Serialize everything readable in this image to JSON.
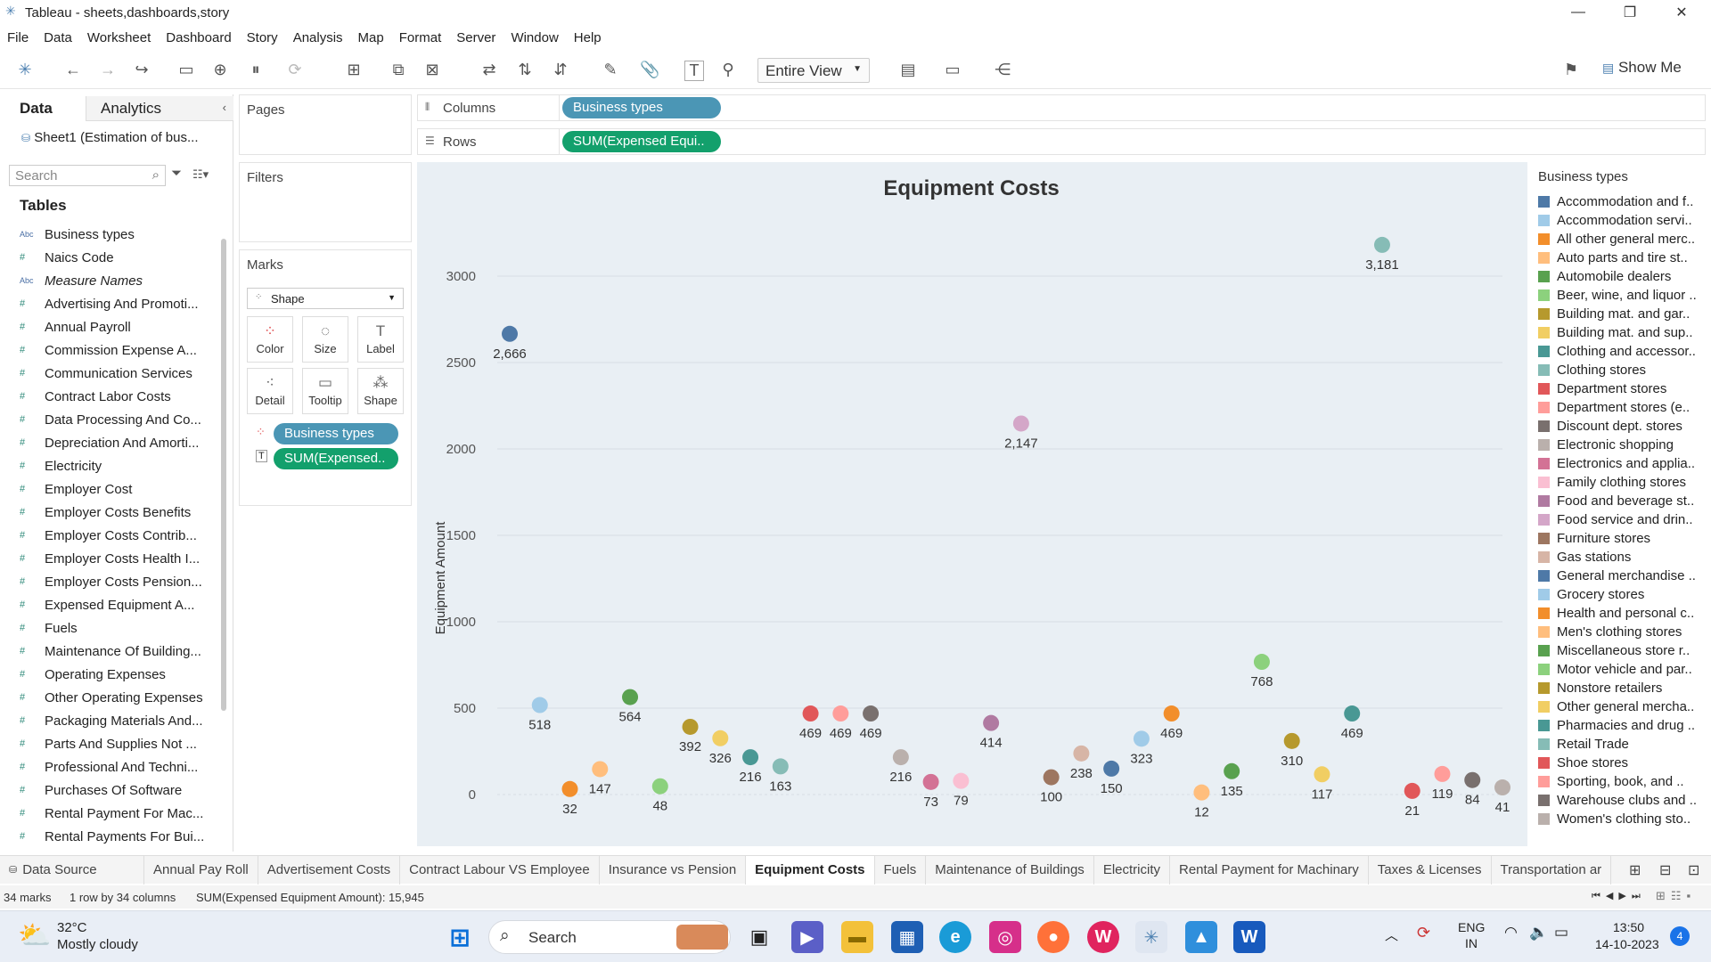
{
  "window": {
    "title": "Tableau - sheets,dashboards,story",
    "controls": [
      "—",
      "❐",
      "✕"
    ]
  },
  "menu": [
    "File",
    "Data",
    "Worksheet",
    "Dashboard",
    "Story",
    "Analysis",
    "Map",
    "Format",
    "Server",
    "Window",
    "Help"
  ],
  "toolbar": {
    "view_select": "Entire View",
    "show_me": "Show Me"
  },
  "datapane": {
    "tab_data": "Data",
    "tab_analytics": "Analytics",
    "datasource": "Sheet1 (Estimation of bus...",
    "search_placeholder": "Search",
    "tables_header": "Tables",
    "fields": [
      {
        "type": "Abc",
        "name": "Business types"
      },
      {
        "type": "#",
        "name": "Naics Code"
      },
      {
        "type": "Abc",
        "name": "Measure Names"
      },
      {
        "type": "#",
        "name": "Advertising And Promoti..."
      },
      {
        "type": "#",
        "name": "Annual Payroll"
      },
      {
        "type": "#",
        "name": "Commission Expense A..."
      },
      {
        "type": "#",
        "name": "Communication Services"
      },
      {
        "type": "#",
        "name": "Contract Labor Costs"
      },
      {
        "type": "#",
        "name": "Data Processing And Co..."
      },
      {
        "type": "#",
        "name": "Depreciation And Amorti..."
      },
      {
        "type": "#",
        "name": "Electricity"
      },
      {
        "type": "#",
        "name": "Employer Cost"
      },
      {
        "type": "#",
        "name": "Employer Costs Benefits"
      },
      {
        "type": "#",
        "name": "Employer Costs Contrib..."
      },
      {
        "type": "#",
        "name": "Employer Costs Health I..."
      },
      {
        "type": "#",
        "name": "Employer Costs Pension..."
      },
      {
        "type": "#",
        "name": "Expensed Equipment A..."
      },
      {
        "type": "#",
        "name": "Fuels"
      },
      {
        "type": "#",
        "name": "Maintenance Of Building..."
      },
      {
        "type": "#",
        "name": "Operating Expenses"
      },
      {
        "type": "#",
        "name": "Other Operating Expenses"
      },
      {
        "type": "#",
        "name": "Packaging Materials And..."
      },
      {
        "type": "#",
        "name": "Parts And Supplies Not ..."
      },
      {
        "type": "#",
        "name": "Professional And Techni..."
      },
      {
        "type": "#",
        "name": "Purchases Of Software"
      },
      {
        "type": "#",
        "name": "Rental Payment For Mac..."
      },
      {
        "type": "#",
        "name": "Rental Payments For Bui..."
      }
    ]
  },
  "cards": {
    "pages": "Pages",
    "filters": "Filters",
    "marks": "Marks",
    "mark_type": "Shape",
    "mark_buttons": [
      "Color",
      "Size",
      "Label",
      "Detail",
      "Tooltip",
      "Shape"
    ],
    "mark_pills": [
      "Business types",
      "SUM(Expensed.."
    ]
  },
  "shelves": {
    "columns_label": "Columns",
    "columns_pill": "Business types",
    "rows_label": "Rows",
    "rows_pill": "SUM(Expensed Equi.."
  },
  "chart_data": {
    "type": "scatter",
    "title": "Equipment Costs",
    "ylabel": "Equipment Amount",
    "xlabel": "",
    "ylim": [
      0,
      3300
    ],
    "yticks": [
      0,
      500,
      1000,
      1500,
      2000,
      2500,
      3000
    ],
    "grid": true,
    "legend_title": "Business types",
    "legend_position": "right",
    "categories": [
      "Accommodation and f..",
      "Accommodation servi..",
      "All other general merc..",
      "Auto parts and tire st..",
      "Automobile dealers",
      "Beer, wine, and liquor ..",
      "Building mat. and gar..",
      "Building mat. and sup..",
      "Clothing and accessor..",
      "Clothing stores",
      "Department stores",
      "Department stores (e..",
      "Discount dept. stores",
      "Electronic shopping",
      "Electronics and applia..",
      "Family clothing stores",
      "Food and beverage st..",
      "Food service and drin..",
      "Furniture stores",
      "Gas stations",
      "General merchandise ..",
      "Grocery stores",
      "Health and personal c..",
      "Men's clothing stores",
      "Miscellaneous store r..",
      "Motor vehicle and par..",
      "Nonstore retailers",
      "Other general mercha..",
      "Pharmacies and drug ..",
      "Retail Trade",
      "Shoe stores",
      "Sporting, book, and ..",
      "Warehouse clubs and ..",
      "Women's clothing sto.."
    ],
    "values": [
      2666,
      518,
      32,
      147,
      564,
      48,
      392,
      326,
      216,
      163,
      469,
      469,
      469,
      216,
      73,
      79,
      414,
      2147,
      100,
      238,
      150,
      323,
      469,
      12,
      135,
      768,
      310,
      117,
      469,
      3181,
      21,
      119,
      84,
      41
    ],
    "labels": [
      "2,666",
      "518",
      "32",
      "147",
      "564",
      "48",
      "392",
      "326",
      "216",
      "163",
      "469",
      "469",
      "469",
      "216",
      "73",
      "79",
      "414",
      "2,147",
      "100",
      "238",
      "150",
      "323",
      "469",
      "12",
      "135",
      "768",
      "310",
      "117",
      "469",
      "3,181",
      "21",
      "119",
      "84",
      "41"
    ],
    "colors": [
      "#4e79a7",
      "#a0cbe8",
      "#f28e2b",
      "#ffbe7d",
      "#59a14f",
      "#8cd17d",
      "#b6992d",
      "#f1ce63",
      "#499894",
      "#86bcb6",
      "#e15759",
      "#ff9d9a",
      "#79706e",
      "#bab0ac",
      "#d37295",
      "#fabfd2",
      "#b07aa1",
      "#d4a6c8",
      "#9d7660",
      "#d7b5a6",
      "#4e79a7",
      "#a0cbe8",
      "#f28e2b",
      "#ffbe7d",
      "#59a14f",
      "#8cd17d",
      "#b6992d",
      "#f1ce63",
      "#499894",
      "#86bcb6",
      "#e15759",
      "#ff9d9a",
      "#79706e",
      "#bab0ac"
    ]
  },
  "sheet_tabs": {
    "data_source": "Data Source",
    "tabs": [
      "Annual Pay Roll",
      "Advertisement Costs",
      "Contract Labour VS Employee",
      "Insurance vs Pension",
      "Equipment Costs",
      "Fuels",
      "Maintenance of Buildings",
      "Electricity",
      "Rental Payment for Machinary",
      "Taxes & Licenses",
      "Transportation ar"
    ],
    "active": "Equipment Costs"
  },
  "status": {
    "marks": "34 marks",
    "dims": "1 row by 34 columns",
    "sum": "SUM(Expensed Equipment Amount): 15,945"
  },
  "taskbar": {
    "weather_temp": "32°C",
    "weather_desc": "Mostly cloudy",
    "search": "Search",
    "lang1": "ENG",
    "lang2": "IN",
    "time": "13:50",
    "date": "14-10-2023",
    "notif": "4"
  }
}
